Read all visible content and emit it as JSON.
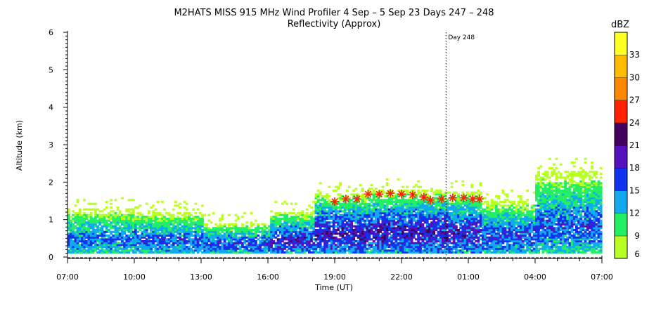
{
  "chart_data": {
    "type": "heatmap",
    "title": "M2HATS MISS 915 MHz Wind Profiler   4 Sep –  5 Sep 23 Days 247 – 248",
    "subtitle": "Reflectivity (Approx)",
    "xlabel": "Time (UT)",
    "ylabel": "Altitude (km)",
    "x_ticks": [
      "07:00",
      "10:00",
      "13:00",
      "16:00",
      "19:00",
      "22:00",
      "01:00",
      "04:00",
      "07:00"
    ],
    "x_range_hours": [
      0,
      24
    ],
    "y_ticks": [
      "0",
      "1",
      "2",
      "3",
      "4",
      "5",
      "6"
    ],
    "ylim": [
      0,
      6
    ],
    "day_marker": {
      "label": "Day 248",
      "hours_after_start": 17
    },
    "colorbar": {
      "unit": "dBZ",
      "tick_labels": [
        "6",
        "9",
        "12",
        "15",
        "18",
        "21",
        "24",
        "27",
        "30",
        "33"
      ],
      "bins": [
        6,
        9,
        12,
        15,
        18,
        21,
        24,
        27,
        30,
        33,
        36
      ],
      "colors": [
        "#b8ff22",
        "#22ee66",
        "#11aaee",
        "#1133ee",
        "#5511bb",
        "#44005e",
        "#ff2200",
        "#ff8800",
        "#ffbb00",
        "#ffff22"
      ]
    },
    "reflectivity_layers": [
      {
        "start_h": 0.0,
        "end_h": 3.0,
        "top_km": 1.3,
        "max_dbz": 17
      },
      {
        "start_h": 3.0,
        "end_h": 6.0,
        "top_km": 1.2,
        "max_dbz": 18
      },
      {
        "start_h": 6.0,
        "end_h": 9.0,
        "top_km": 0.9,
        "max_dbz": 19
      },
      {
        "start_h": 9.0,
        "end_h": 11.0,
        "top_km": 1.2,
        "max_dbz": 21
      },
      {
        "start_h": 11.0,
        "end_h": 13.5,
        "top_km": 1.7,
        "max_dbz": 22
      },
      {
        "start_h": 13.5,
        "end_h": 17.0,
        "top_km": 1.8,
        "max_dbz": 22
      },
      {
        "start_h": 17.0,
        "end_h": 18.5,
        "top_km": 1.75,
        "max_dbz": 21
      },
      {
        "start_h": 18.5,
        "end_h": 21.0,
        "top_km": 1.5,
        "max_dbz": 19
      },
      {
        "start_h": 21.0,
        "end_h": 24.0,
        "top_km": 2.3,
        "max_dbz": 18
      }
    ],
    "boundary_layer_markers": [
      {
        "t_h": 12.0,
        "km": 1.48
      },
      {
        "t_h": 12.5,
        "km": 1.55
      },
      {
        "t_h": 13.0,
        "km": 1.55
      },
      {
        "t_h": 13.5,
        "km": 1.68
      },
      {
        "t_h": 14.0,
        "km": 1.68
      },
      {
        "t_h": 14.5,
        "km": 1.7
      },
      {
        "t_h": 15.0,
        "km": 1.68
      },
      {
        "t_h": 15.5,
        "km": 1.66
      },
      {
        "t_h": 16.0,
        "km": 1.6
      },
      {
        "t_h": 16.3,
        "km": 1.52
      },
      {
        "t_h": 16.8,
        "km": 1.55
      },
      {
        "t_h": 17.3,
        "km": 1.58
      },
      {
        "t_h": 17.8,
        "km": 1.58
      },
      {
        "t_h": 18.2,
        "km": 1.55
      },
      {
        "t_h": 18.5,
        "km": 1.55
      }
    ]
  }
}
